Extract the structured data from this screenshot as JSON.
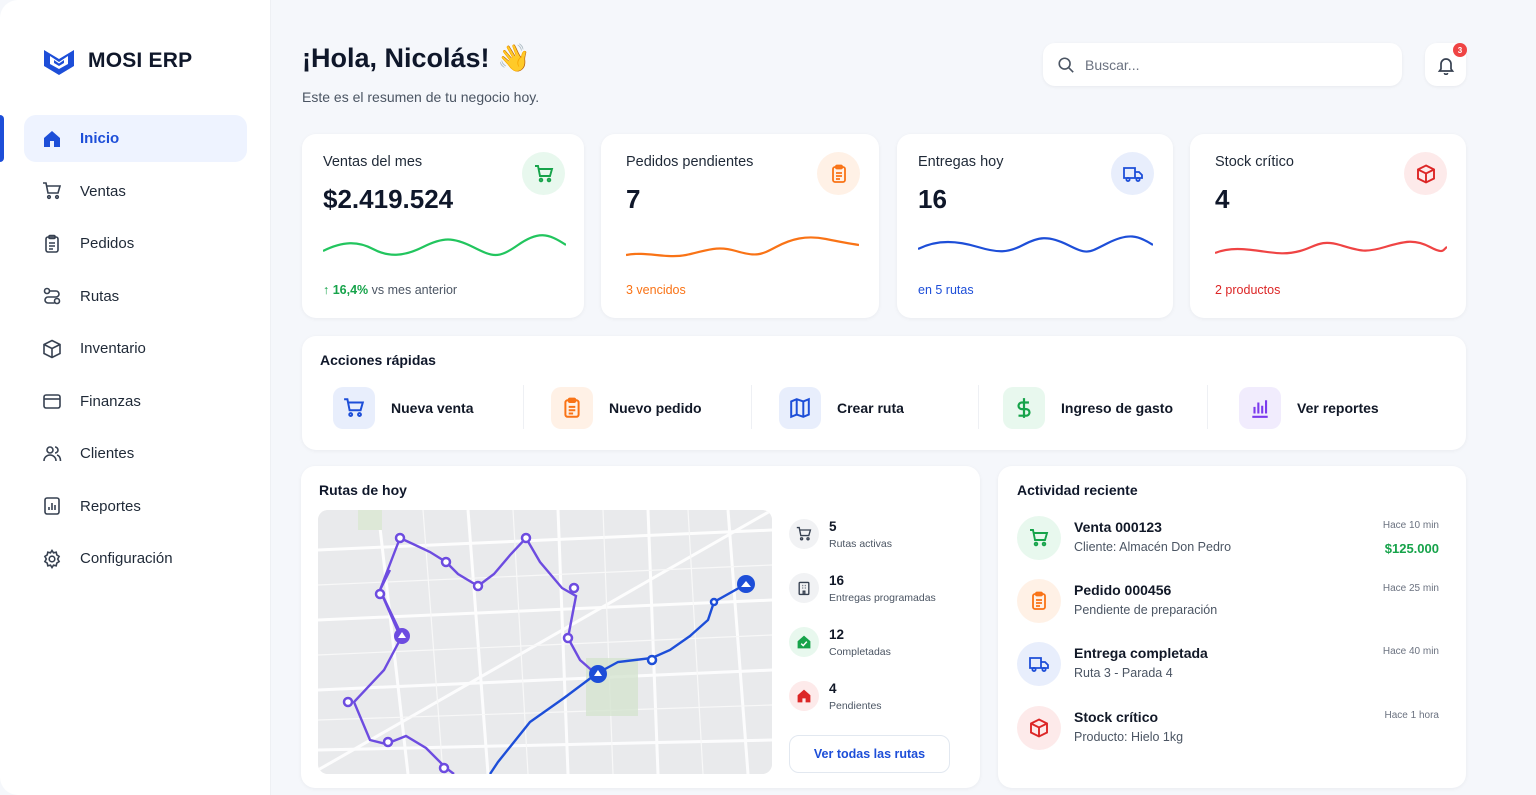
{
  "brand": {
    "name": "MOSI ERP"
  },
  "sidebar": {
    "items": [
      {
        "label": "Inicio",
        "icon": "home-icon"
      },
      {
        "label": "Ventas",
        "icon": "cart-icon"
      },
      {
        "label": "Pedidos",
        "icon": "clipboard-icon"
      },
      {
        "label": "Rutas",
        "icon": "route-icon"
      },
      {
        "label": "Inventario",
        "icon": "box-icon"
      },
      {
        "label": "Finanzas",
        "icon": "wallet-icon"
      },
      {
        "label": "Clientes",
        "icon": "users-icon"
      },
      {
        "label": "Reportes",
        "icon": "report-icon"
      },
      {
        "label": "Configuración",
        "icon": "gear-icon"
      }
    ],
    "active": "Inicio"
  },
  "header": {
    "greeting": "¡Hola, Nicolás! 👋",
    "subtitle": "Este es el resumen de tu negocio hoy.",
    "search_placeholder": "Buscar...",
    "notifications": "3"
  },
  "kpis": [
    {
      "title": "Ventas del mes",
      "value": "$2.419.524",
      "foot": "↑ 16,4%",
      "foot_rest": " vs mes anterior",
      "color": "#16a34a",
      "icon": "cart-icon"
    },
    {
      "title": "Pedidos pendientes",
      "value": "7",
      "foot": "3 vencidos",
      "foot_rest": "",
      "color": "#f97316",
      "icon": "clipboard-icon"
    },
    {
      "title": "Entregas hoy",
      "value": "16",
      "foot": "en 5 rutas",
      "foot_rest": "",
      "color": "#1d4ed8",
      "icon": "truck-icon"
    },
    {
      "title": "Stock crítico",
      "value": "4",
      "foot": "2 productos",
      "foot_rest": "",
      "color": "#dc2626",
      "icon": "box-icon"
    }
  ],
  "quick_actions": {
    "title": "Acciones rápidas",
    "items": [
      {
        "label": "Nueva venta",
        "icon": "cart-icon",
        "color": "#1d4ed8"
      },
      {
        "label": "Nuevo pedido",
        "icon": "clipboard-icon",
        "color": "#f97316"
      },
      {
        "label": "Crear ruta",
        "icon": "map-icon",
        "color": "#1d4ed8"
      },
      {
        "label": "Ingreso de gasto",
        "icon": "dollar-icon",
        "color": "#16a34a"
      },
      {
        "label": "Ver reportes",
        "icon": "bar-chart-icon",
        "color": "#7c3aed"
      }
    ]
  },
  "routes": {
    "title": "Rutas de hoy",
    "stats": [
      {
        "num": "5",
        "label": "Rutas activas",
        "icon": "cart-icon"
      },
      {
        "num": "16",
        "label": "Entregas programadas",
        "icon": "building-icon"
      },
      {
        "num": "12",
        "label": "Completadas",
        "icon": "home-check-icon"
      },
      {
        "num": "4",
        "label": "Pendientes",
        "icon": "home-icon"
      }
    ],
    "button": "Ver todas las rutas"
  },
  "activity": {
    "title": "Actividad reciente",
    "items": [
      {
        "title": "Venta 000123",
        "sub": "Cliente: Almacén Don Pedro",
        "time": "Hace 10 min",
        "amount": "$125.000",
        "icon": "cart-icon",
        "color": "#16a34a"
      },
      {
        "title": "Pedido 000456",
        "sub": "Pendiente de preparación",
        "time": "Hace 25 min",
        "amount": "",
        "icon": "clipboard-icon",
        "color": "#f97316"
      },
      {
        "title": "Entrega completada",
        "sub": "Ruta 3 - Parada 4",
        "time": "Hace 40 min",
        "amount": "",
        "icon": "truck-icon",
        "color": "#1d4ed8"
      },
      {
        "title": "Stock crítico",
        "sub": "Producto: Hielo 1kg",
        "time": "Hace 1 hora",
        "amount": "",
        "icon": "box-icon",
        "color": "#dc2626"
      }
    ]
  }
}
